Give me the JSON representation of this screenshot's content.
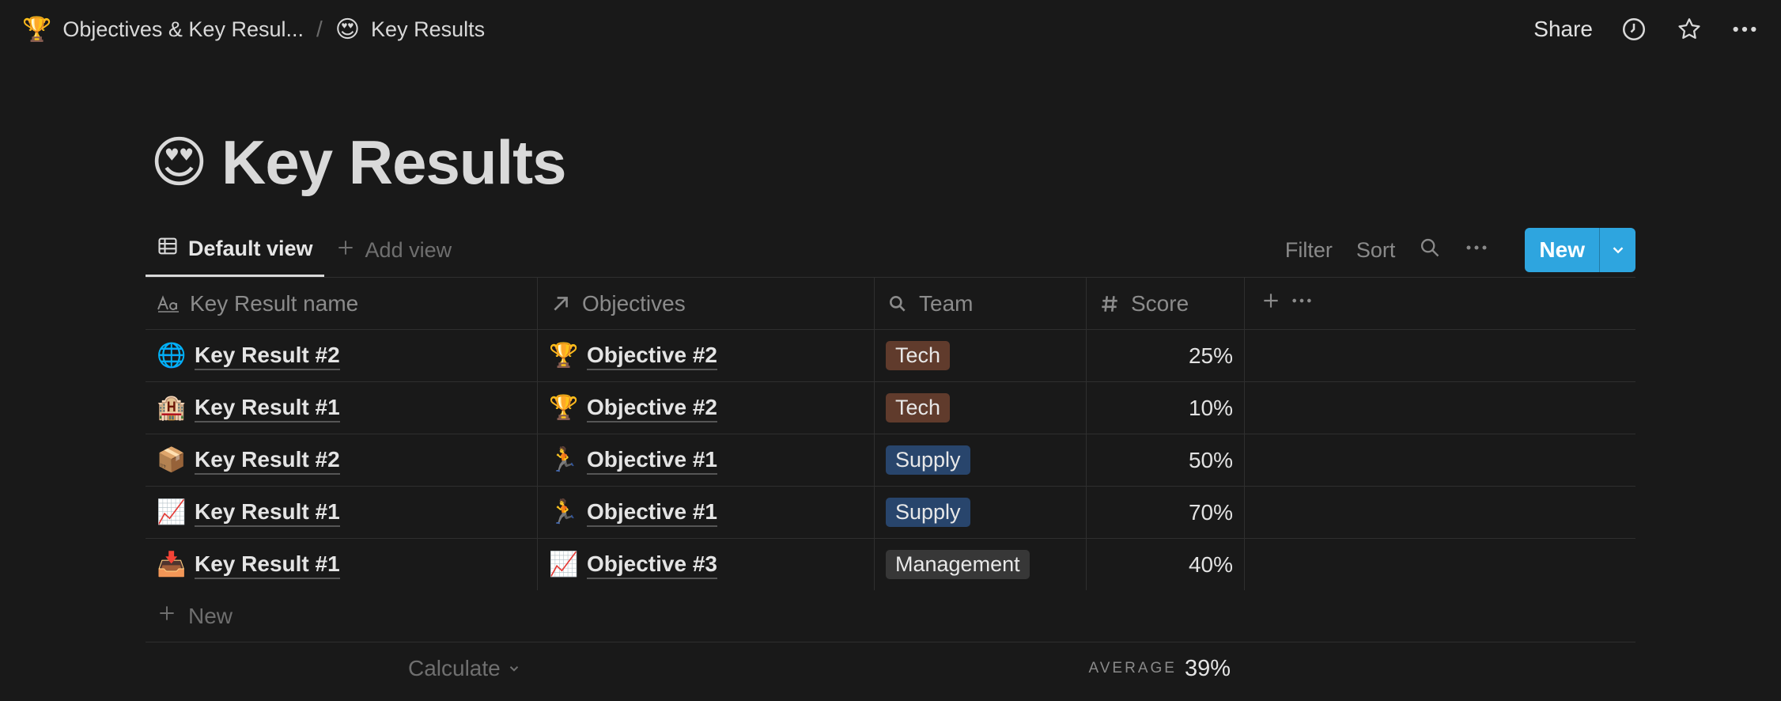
{
  "breadcrumb": [
    {
      "icon": "🏆",
      "label": "Objectives & Key Resul..."
    },
    {
      "icon": "😍",
      "label": "Key Results"
    }
  ],
  "breadcrumb_separator": "/",
  "topbar": {
    "share_label": "Share"
  },
  "page": {
    "icon": "😍",
    "title": "Key Results"
  },
  "views": {
    "active_label": "Default view",
    "add_label": "Add view"
  },
  "toolbar": {
    "filter_label": "Filter",
    "sort_label": "Sort",
    "new_label": "New"
  },
  "columns": [
    {
      "label": "Key Result name",
      "icon": "title-text-icon"
    },
    {
      "label": "Objectives",
      "icon": "relation-arrow-icon"
    },
    {
      "label": "Team",
      "icon": "search-icon"
    },
    {
      "label": "Score",
      "icon": "hash-icon"
    }
  ],
  "rows": [
    {
      "icon": "🌐",
      "name": "Key Result #2",
      "obj_icon": "🏆",
      "objective": "Objective #2",
      "team": "Tech",
      "team_color": "#603b2c",
      "score": "25%"
    },
    {
      "icon": "🏨",
      "name": "Key Result #1",
      "obj_icon": "🏆",
      "objective": "Objective #2",
      "team": "Tech",
      "team_color": "#603b2c",
      "score": "10%"
    },
    {
      "icon": "📦",
      "name": "Key Result #2",
      "obj_icon": "🏃",
      "objective": "Objective #1",
      "team": "Supply",
      "team_color": "#28456c",
      "score": "50%"
    },
    {
      "icon": "📈",
      "name": "Key Result #1",
      "obj_icon": "🏃",
      "objective": "Objective #1",
      "team": "Supply",
      "team_color": "#28456c",
      "score": "70%"
    },
    {
      "icon": "📥",
      "name": "Key Result #1",
      "obj_icon": "📈",
      "objective": "Objective #3",
      "team": "Management",
      "team_color": "#373737",
      "score": "40%"
    }
  ],
  "footer": {
    "new_row_label": "New",
    "calculate_label": "Calculate",
    "average_label": "AVERAGE",
    "average_value": "39%"
  },
  "colors": {
    "accent": "#2ea5df",
    "background": "#191919"
  }
}
